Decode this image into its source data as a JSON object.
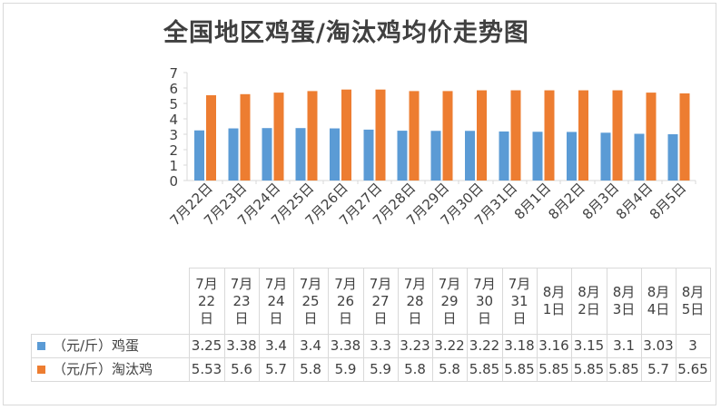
{
  "chart_data": {
    "type": "bar",
    "title": "全国地区鸡蛋/淘汰鸡均价走势图",
    "categories": [
      "7月22日",
      "7月23日",
      "7月24日",
      "7月25日",
      "7月26日",
      "7月27日",
      "7月28日",
      "7月29日",
      "7月30日",
      "7月31日",
      "8月1日",
      "8月2日",
      "8月3日",
      "8月4日",
      "8月5日"
    ],
    "header_lines": [
      [
        "7月",
        "22",
        "日"
      ],
      [
        "7月",
        "23",
        "日"
      ],
      [
        "7月",
        "24",
        "日"
      ],
      [
        "7月",
        "25",
        "日"
      ],
      [
        "7月",
        "26",
        "日"
      ],
      [
        "7月",
        "27",
        "日"
      ],
      [
        "7月",
        "28",
        "日"
      ],
      [
        "7月",
        "29",
        "日"
      ],
      [
        "7月",
        "30",
        "日"
      ],
      [
        "7月",
        "31",
        "日"
      ],
      [
        "8月",
        "1日"
      ],
      [
        "8月",
        "2日"
      ],
      [
        "8月",
        "3日"
      ],
      [
        "8月",
        "4日"
      ],
      [
        "8月",
        "5日"
      ]
    ],
    "series": [
      {
        "name": "（元/斤）鸡蛋",
        "color": "#5b9bd5",
        "values": [
          3.25,
          3.38,
          3.4,
          3.4,
          3.38,
          3.3,
          3.23,
          3.22,
          3.22,
          3.18,
          3.16,
          3.15,
          3.1,
          3.03,
          3
        ]
      },
      {
        "name": "（元/斤）淘汰鸡",
        "color": "#ed7d31",
        "values": [
          5.53,
          5.6,
          5.7,
          5.8,
          5.9,
          5.9,
          5.8,
          5.8,
          5.85,
          5.85,
          5.85,
          5.85,
          5.85,
          5.7,
          5.65
        ]
      }
    ],
    "ylim": [
      0,
      7
    ],
    "yticks": [
      0,
      1,
      2,
      3,
      4,
      5,
      6,
      7
    ],
    "grid": false,
    "legend": "data-table"
  },
  "colors": {
    "axis": "#d9d9d9",
    "text": "#404040"
  }
}
